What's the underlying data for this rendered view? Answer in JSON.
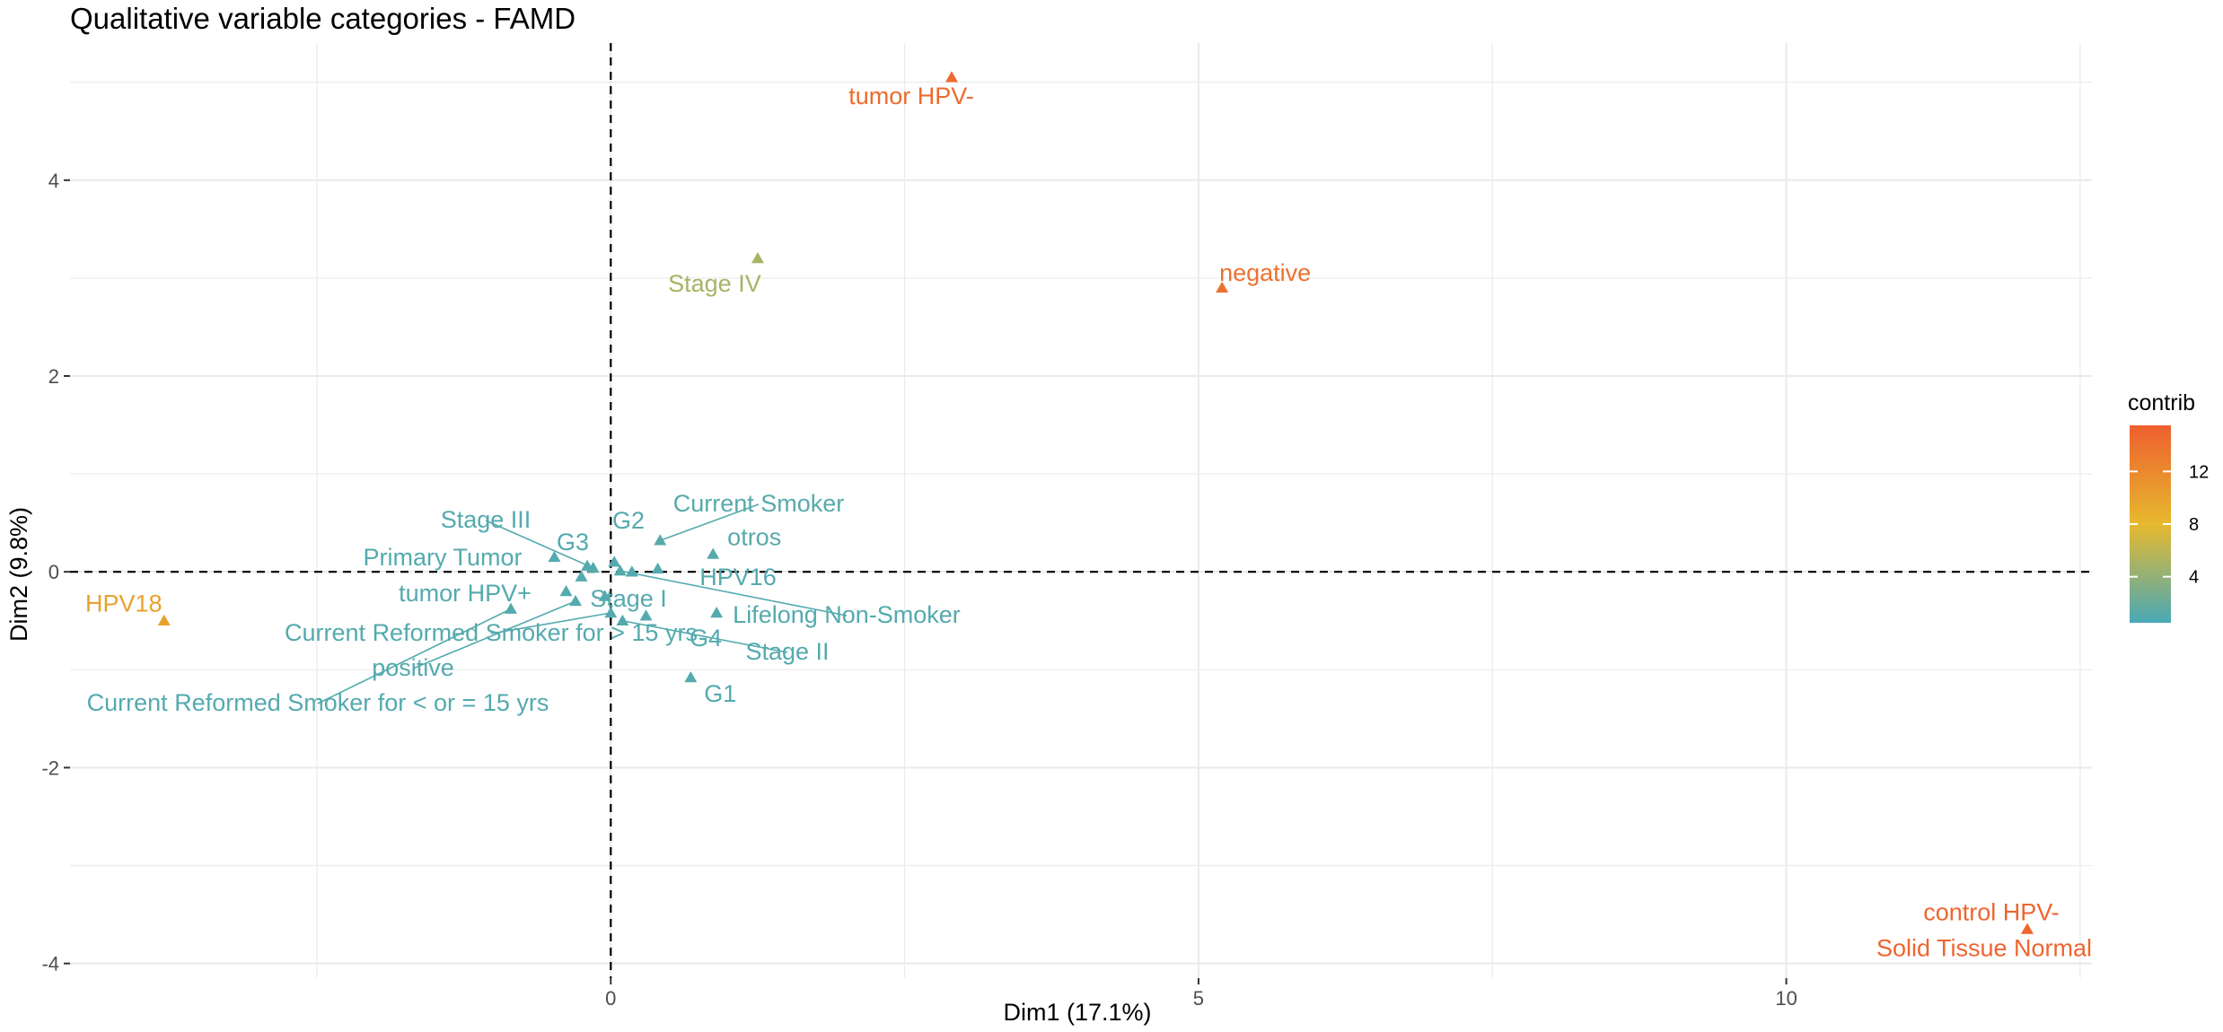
{
  "chart_data": {
    "type": "scatter",
    "title": "Qualitative variable categories - FAMD",
    "xlabel": "Dim1 (17.1%)",
    "ylabel": "Dim2 (9.8%)",
    "xlim": [
      -4.6,
      12.6
    ],
    "ylim": [
      -4.15,
      5.4
    ],
    "xticks": [
      0,
      5,
      10
    ],
    "yticks": [
      -4,
      -2,
      0,
      2,
      4
    ],
    "grid": true,
    "marker": "triangle",
    "color_scale": {
      "title": "contrib",
      "ticks": [
        4,
        8,
        12
      ],
      "range": [
        0.5,
        15.5
      ],
      "colors": [
        "#49A9B7",
        "#E7B92E",
        "#EE5F2F"
      ]
    },
    "points": [
      {
        "label": "tumor HPV-",
        "x": 2.9,
        "y": 5.05,
        "contrib": 14.5
      },
      {
        "label": "Stage IV",
        "x": 1.25,
        "y": 3.2,
        "contrib": 5.0
      },
      {
        "label": "negative",
        "x": 5.2,
        "y": 2.9,
        "contrib": 14.0
      },
      {
        "label": "HPV18",
        "x": -3.8,
        "y": -0.5,
        "contrib": 10.0
      },
      {
        "label": "control HPV-",
        "x": 12.05,
        "y": -3.65,
        "contrib": 15.0
      },
      {
        "label": "Solid Tissue Normal",
        "x": 12.05,
        "y": -3.65,
        "contrib": 15.0
      },
      {
        "label": "Current Smoker",
        "x": 0.42,
        "y": 0.32,
        "contrib": 1.2
      },
      {
        "label": "otros",
        "x": 0.87,
        "y": 0.18,
        "contrib": 1.2
      },
      {
        "label": "HPV16",
        "x": 0.4,
        "y": 0.03,
        "contrib": 1.0
      },
      {
        "label": "G2",
        "x": 0.03,
        "y": 0.1,
        "contrib": 1.0
      },
      {
        "label": "G3",
        "x": -0.2,
        "y": 0.06,
        "contrib": 1.0
      },
      {
        "label": "Stage III",
        "x": -0.15,
        "y": 0.04,
        "contrib": 1.0
      },
      {
        "label": "Primary Tumor",
        "x": -0.48,
        "y": 0.15,
        "contrib": 1.0
      },
      {
        "label": "tumor HPV+",
        "x": -0.25,
        "y": -0.05,
        "contrib": 1.0
      },
      {
        "label": "Stage I",
        "x": -0.38,
        "y": -0.2,
        "contrib": 1.0
      },
      {
        "label": "Lifelong Non-Smoker",
        "x": 0.08,
        "y": 0.01,
        "contrib": 1.0
      },
      {
        "label": "Current Reformed Smoker for > 15 yrs",
        "x": 0.0,
        "y": -0.42,
        "contrib": 1.0
      },
      {
        "label": "G4",
        "x": 0.9,
        "y": -0.42,
        "contrib": 1.0
      },
      {
        "label": "Stage II",
        "x": 0.1,
        "y": -0.5,
        "contrib": 1.0
      },
      {
        "label": "positive",
        "x": -0.3,
        "y": -0.3,
        "contrib": 1.0
      },
      {
        "label": "Current Reformed Smoker for < or = 15 yrs",
        "x": -0.85,
        "y": -0.38,
        "contrib": 1.0
      },
      {
        "label": "G1",
        "x": 0.68,
        "y": -1.08,
        "contrib": 1.0
      }
    ],
    "extra_points": [
      {
        "x": 0.18,
        "y": 0.0,
        "contrib": 1.0
      },
      {
        "x": -0.05,
        "y": -0.25,
        "contrib": 1.0
      },
      {
        "x": 0.3,
        "y": -0.45,
        "contrib": 1.0
      }
    ]
  }
}
